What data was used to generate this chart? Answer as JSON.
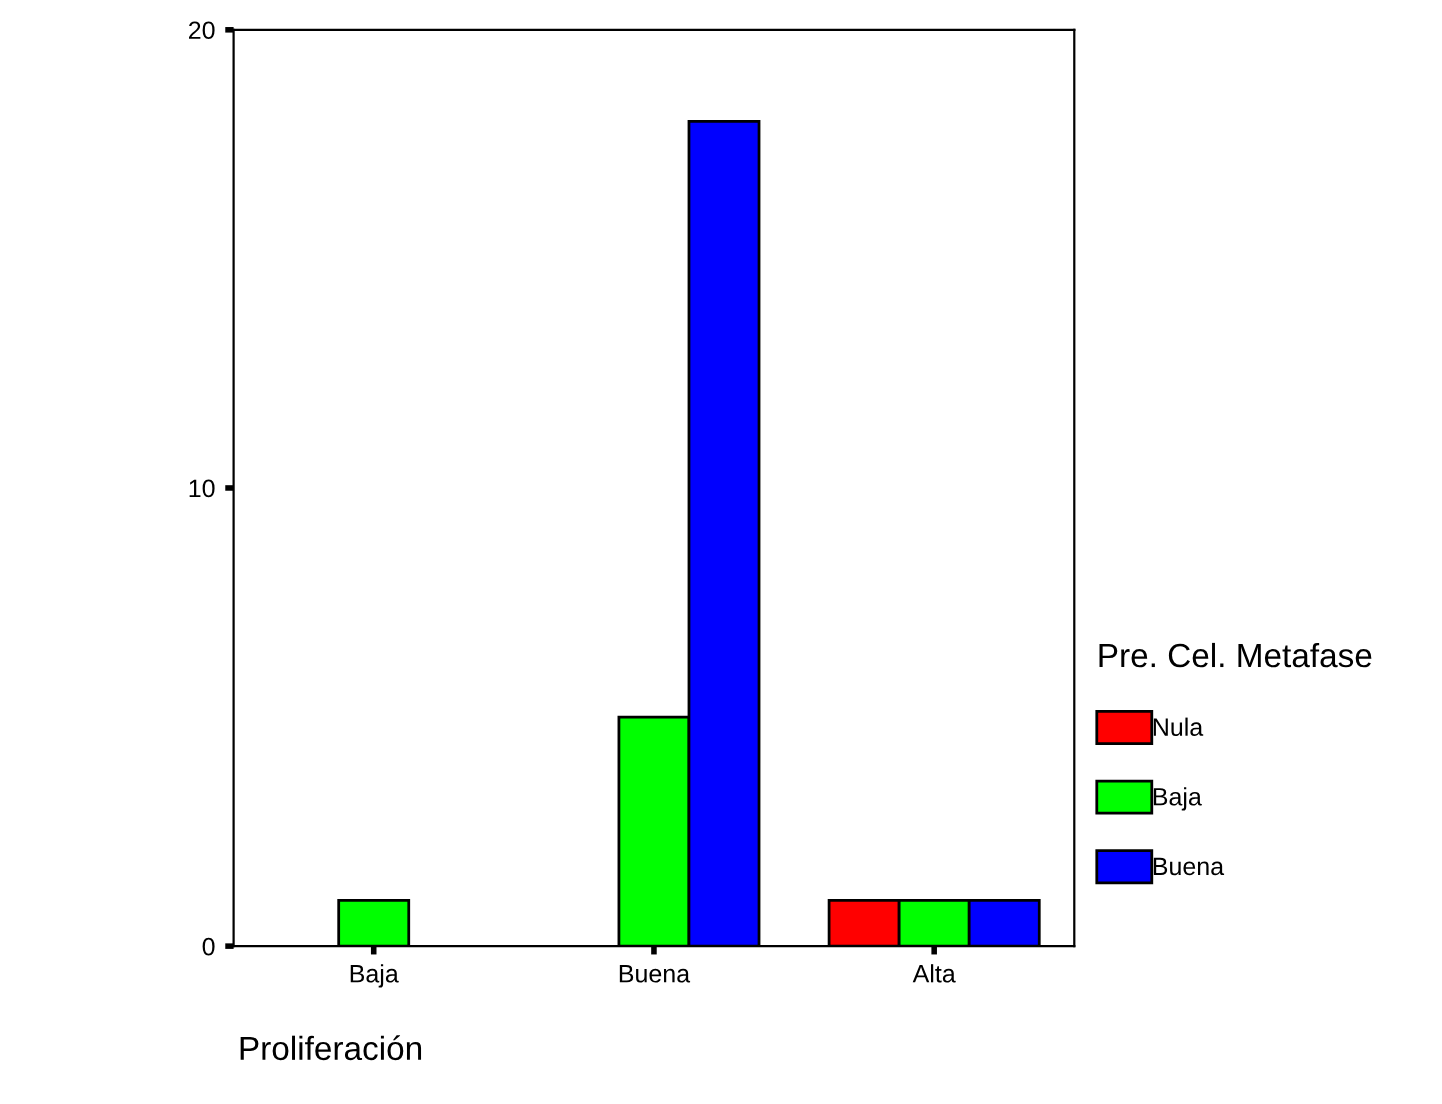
{
  "chart_data": {
    "type": "bar",
    "xlabel": "Proliferación",
    "legend_title": "Pre. Cel. Metafase",
    "categories": [
      "Baja",
      "Buena",
      "Alta"
    ],
    "series": [
      {
        "name": "Nula",
        "color": "#ff0000",
        "values": [
          null,
          null,
          1
        ]
      },
      {
        "name": "Baja",
        "color": "#00ff00",
        "values": [
          1,
          5,
          1
        ]
      },
      {
        "name": "Buena",
        "color": "#0000ff",
        "values": [
          null,
          18,
          1
        ]
      }
    ],
    "ylim": [
      0,
      20
    ],
    "yticks": [
      0,
      10,
      20
    ],
    "grid": false,
    "legend": "right"
  }
}
